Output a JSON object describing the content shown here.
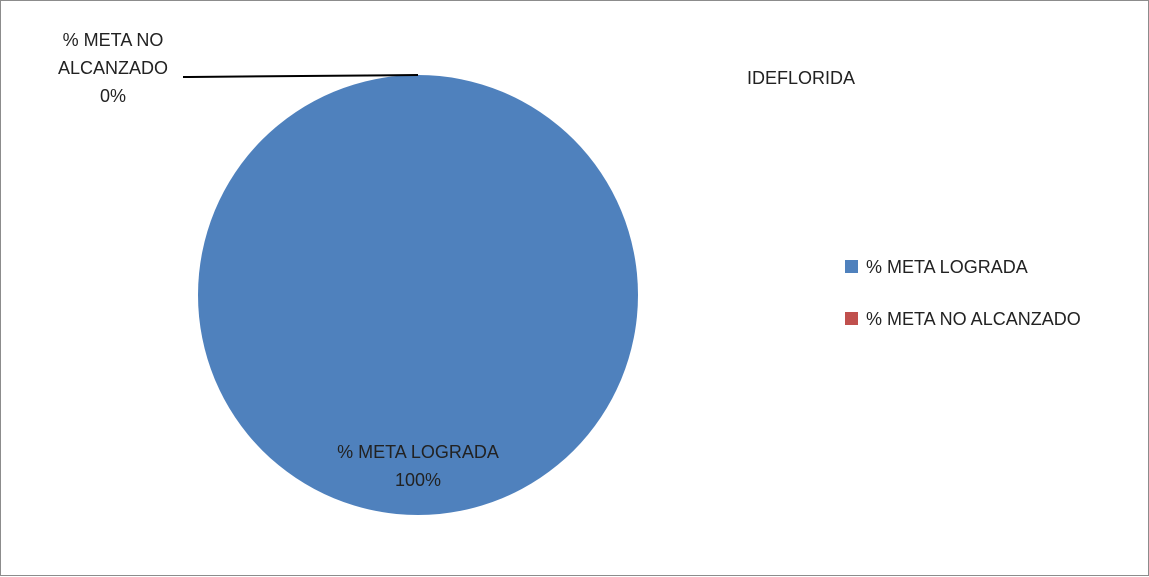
{
  "chart_data": {
    "type": "pie",
    "title": "IDEFLORIDA",
    "slices": [
      {
        "name": "% META LOGRADA",
        "value": 100,
        "label_lines": [
          "% META LOGRADA",
          "100%"
        ],
        "color": "#4f81bd"
      },
      {
        "name": "% META NO ALCANZADO",
        "value": 0,
        "label_lines": [
          "% META NO",
          "ALCANZADO",
          "0%"
        ],
        "color": "#c0504d"
      }
    ],
    "legend": {
      "position": "right",
      "items": [
        {
          "label": "% META LOGRADA",
          "color": "#4f81bd"
        },
        {
          "label": "% META NO ALCANZADO",
          "color": "#c0504d"
        }
      ]
    }
  }
}
